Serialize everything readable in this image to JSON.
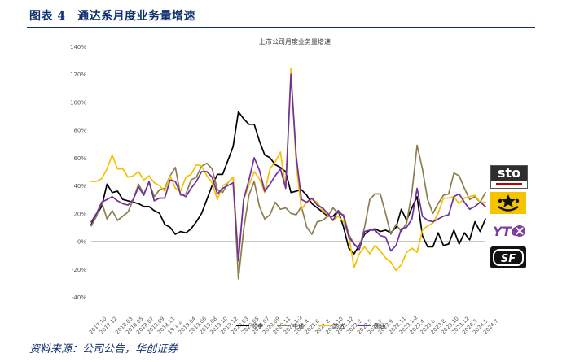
{
  "figure": {
    "title": "图表 4　通达系月度业务量增速",
    "source": "资料来源：公司公告，华创证券"
  },
  "logos": {
    "sto": {
      "text": "sto",
      "color": "#2e2e2e"
    },
    "zto": {
      "icon": "star-face-icon",
      "color": "#f5c400"
    },
    "yto": {
      "text": "YTO",
      "color": "#7b3fa0"
    },
    "sf": {
      "text": "SF",
      "color": "#111111"
    }
  },
  "chart_data": {
    "type": "line",
    "title": "上市公司月度业务量增速",
    "xlabel": "",
    "ylabel": "",
    "ylim": [
      -40,
      140
    ],
    "yticks": [
      -40,
      -20,
      0,
      20,
      40,
      60,
      80,
      100,
      120,
      140
    ],
    "ytick_labels": [
      "-40%",
      "-20%",
      "0%",
      "20%",
      "40%",
      "60%",
      "80%",
      "100%",
      "120%",
      "140%"
    ],
    "grid": false,
    "legend_position": "bottom",
    "x": [
      "2017.10",
      "2017.11",
      "2017.12",
      "2018.01",
      "2018.02",
      "2018.03",
      "2018.04",
      "2018.05",
      "2018.06",
      "2018.07",
      "2018.08",
      "2018.09",
      "2018.10",
      "2018.11",
      "2018.12",
      "19.1-2",
      "2019.03",
      "2019.04",
      "2019.05",
      "2019.06",
      "2019.07",
      "2019.08",
      "2019.09",
      "2019.10",
      "2019.11",
      "2019.12",
      "2020.1-2",
      "2020.03",
      "2020.04",
      "2020.05",
      "2020.06",
      "2020.07",
      "2020.08",
      "2020.09",
      "2020.10",
      "2020.11",
      "2020.12",
      "2021.1-2",
      "2021.3",
      "2021.4",
      "2021.5",
      "2021.6",
      "2021.7",
      "2021.8",
      "2021.9",
      "2021.10",
      "2021.11",
      "2021.12",
      "2022.1-2",
      "2022.3",
      "2022.4",
      "2022.5",
      "2022.6",
      "2022.7",
      "2022.8",
      "2022.9",
      "2022.10",
      "2022.11",
      "2022.12",
      "2023.1-2",
      "2023.3",
      "2023.4",
      "2023.5",
      "2023.6",
      "2023.7",
      "2023.8",
      "2023.9",
      "2023.10",
      "2023.11",
      "2023.12",
      "2024.1-2",
      "2024.3",
      "2024.4",
      "2024.5",
      "2024.6",
      "2024.7"
    ],
    "x_tick_labels": [
      "2017.10",
      "2017.12",
      "2018.03",
      "2018.05",
      "2018.07",
      "2018.09",
      "2018.11",
      "19.1-2",
      "2019.04",
      "2019.06",
      "2019.08",
      "2019.10",
      "2019.12",
      "2020.03",
      "2020.05",
      "2020.07",
      "2020.09",
      "2020.11",
      "2021.1-2",
      "2021.4",
      "2021.6",
      "2021.8",
      "2021.10",
      "2021.12",
      "2022.3",
      "2022.5",
      "2022.7",
      "2022.9",
      "2022.11",
      "2023.1-2",
      "2023.4",
      "2023.6",
      "2023.8",
      "2023.10",
      "2023.12",
      "2024.3",
      "2024.5",
      "2024.7"
    ],
    "series": [
      {
        "name": "顺丰",
        "color": "#000000",
        "values": [
          12,
          19,
          25,
          41,
          35,
          36,
          30,
          29,
          28,
          27,
          25,
          25,
          22,
          20,
          12,
          10,
          5,
          7,
          6,
          9,
          14,
          20,
          30,
          40,
          48,
          48,
          58,
          68,
          93,
          88,
          84,
          84,
          72,
          62,
          60,
          55,
          53,
          50,
          35,
          36,
          37,
          33,
          27,
          24,
          21,
          18,
          18,
          22,
          10,
          -5,
          -9,
          -3,
          5,
          8,
          9,
          7,
          8,
          6,
          10,
          23,
          15,
          24,
          32,
          4,
          -4,
          -4,
          6,
          -3,
          -2,
          8,
          -2,
          6,
          1,
          14,
          7,
          16
        ]
      },
      {
        "name": "中通",
        "color": "#8b7d4e",
        "values": [
          11,
          18,
          28,
          16,
          22,
          15,
          18,
          21,
          30,
          41,
          34,
          42,
          32,
          37,
          38,
          47,
          53,
          33,
          34,
          44,
          46,
          54,
          56,
          52,
          37,
          35,
          42,
          46,
          -27,
          8,
          33,
          43,
          25,
          16,
          19,
          28,
          23,
          24,
          20,
          19,
          25,
          10,
          5,
          14,
          15,
          18,
          24,
          20,
          19,
          5,
          -2,
          -5,
          10,
          30,
          34,
          34,
          20,
          5,
          12,
          7,
          13,
          35,
          69,
          52,
          30,
          20,
          27,
          33,
          34,
          49,
          47,
          38,
          30,
          32,
          28,
          35
        ]
      },
      {
        "name": "韵达",
        "color": "#f5c000",
        "values": [
          43,
          43,
          45,
          52,
          62,
          52,
          52,
          46,
          47,
          50,
          44,
          47,
          42,
          40,
          36,
          47,
          38,
          36,
          46,
          48,
          55,
          54,
          47,
          42,
          30,
          40,
          42,
          46,
          -13,
          30,
          40,
          50,
          45,
          35,
          52,
          57,
          64,
          38,
          124,
          55,
          23,
          28,
          30,
          28,
          22,
          19,
          15,
          18,
          14,
          4,
          -19,
          -9,
          -4,
          -9,
          -3,
          -7,
          -12,
          -15,
          -21,
          -17,
          -8,
          -5,
          -8,
          8,
          11,
          13,
          20,
          31,
          31,
          32,
          27,
          31,
          32,
          33,
          28,
          28
        ]
      },
      {
        "name": "圆通",
        "color": "#7030a0",
        "values": [
          14,
          20,
          28,
          30,
          32,
          29,
          27,
          26,
          30,
          39,
          33,
          43,
          29,
          31,
          31,
          44,
          43,
          34,
          32,
          38,
          43,
          50,
          50,
          46,
          34,
          38,
          40,
          42,
          -14,
          30,
          44,
          60,
          51,
          36,
          41,
          47,
          52,
          38,
          120,
          61,
          30,
          28,
          31,
          26,
          24,
          20,
          15,
          22,
          18,
          3,
          -2,
          -6,
          7,
          8,
          8,
          4,
          3,
          -7,
          -3,
          9,
          10,
          16,
          38,
          18,
          15,
          14,
          16,
          18,
          19,
          32,
          34,
          28,
          23,
          25,
          28,
          25
        ]
      }
    ]
  }
}
